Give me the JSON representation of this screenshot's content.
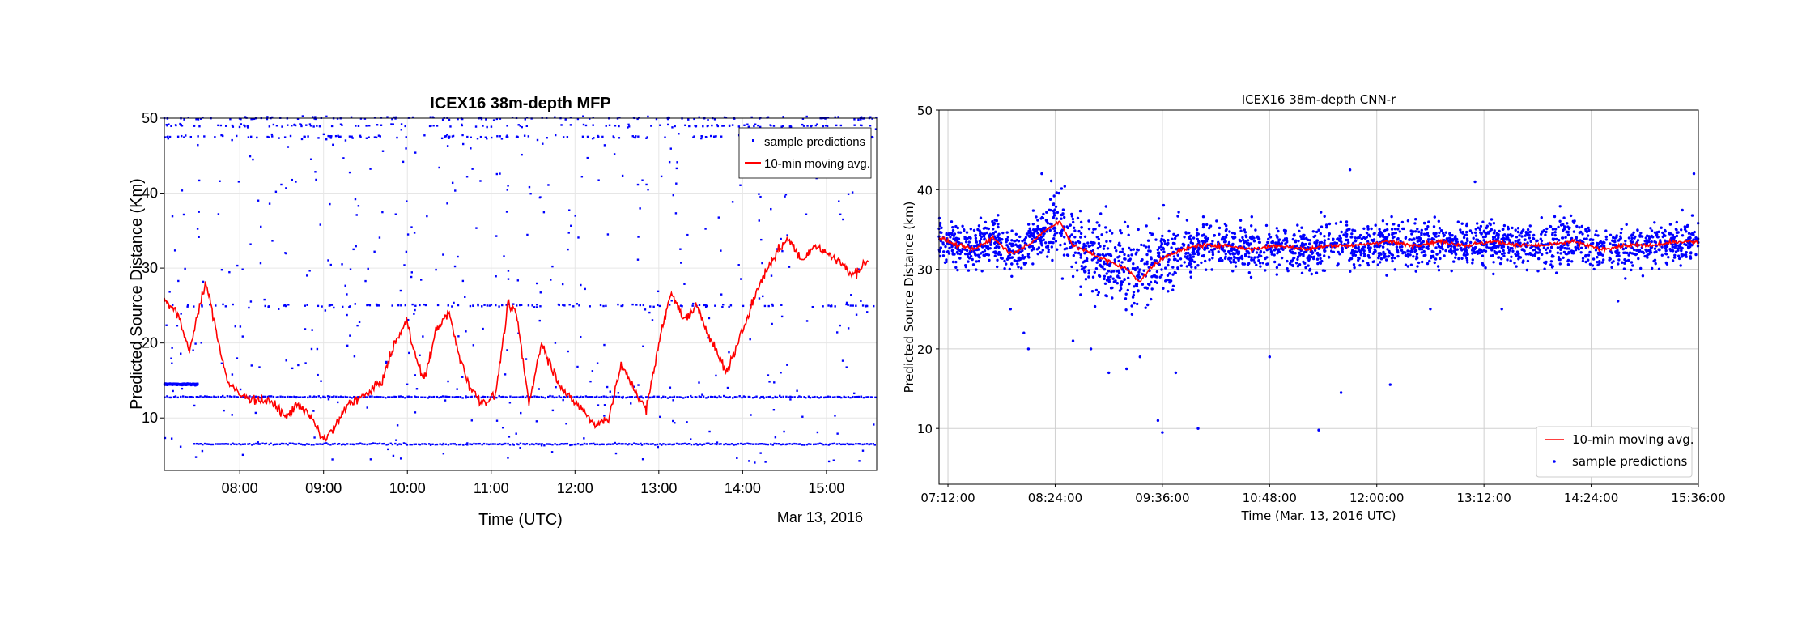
{
  "chart_data": [
    {
      "type": "scatter",
      "title": "ICEX16 38m-depth MFP",
      "xlabel": "Time (UTC)",
      "ylabel": "Predicted Source Distance (Km)",
      "date_note": "Mar 13, 2016",
      "x_range_hours": [
        7.1,
        15.6
      ],
      "ylim": [
        3,
        50
      ],
      "xticks": [
        {
          "t": 8,
          "label": "08:00"
        },
        {
          "t": 9,
          "label": "09:00"
        },
        {
          "t": 10,
          "label": "10:00"
        },
        {
          "t": 11,
          "label": "11:00"
        },
        {
          "t": 12,
          "label": "12:00"
        },
        {
          "t": 13,
          "label": "13:00"
        },
        {
          "t": 14,
          "label": "14:00"
        },
        {
          "t": 15,
          "label": "15:00"
        }
      ],
      "yticks": [
        {
          "v": 10,
          "label": "10"
        },
        {
          "v": 20,
          "label": "20"
        },
        {
          "v": 30,
          "label": "30"
        },
        {
          "v": 40,
          "label": "40"
        },
        {
          "v": 50,
          "label": "50"
        }
      ],
      "grid": true,
      "legend_position": "top-right",
      "series": [
        {
          "name": "sample predictions",
          "kind": "points",
          "color": "#0000ff",
          "bands": [
            {
              "level": 6.5,
              "t_start": 7.45,
              "t_end": 15.6
            },
            {
              "level": 12.8,
              "t_start": 7.1,
              "t_end": 15.6
            },
            {
              "level": 14.5,
              "t_start": 7.1,
              "t_end": 7.5
            },
            {
              "level": 25,
              "t_start": 7.1,
              "t_end": 15.6,
              "sparse": true
            },
            {
              "level": 50,
              "t_start": 7.1,
              "t_end": 15.6,
              "sparse": true
            },
            {
              "level": 49,
              "t_start": 7.1,
              "t_end": 15.6,
              "sparse": true
            },
            {
              "level": 47.5,
              "t_start": 7.1,
              "t_end": 15.6,
              "sparse": true
            }
          ]
        },
        {
          "name": "10-min moving avg.",
          "kind": "line",
          "color": "#ff0000",
          "t": [
            7.1,
            7.25,
            7.4,
            7.5,
            7.6,
            7.75,
            7.85,
            8.0,
            8.2,
            8.4,
            8.55,
            8.7,
            8.85,
            9.0,
            9.15,
            9.3,
            9.5,
            9.7,
            9.85,
            10.0,
            10.1,
            10.2,
            10.35,
            10.5,
            10.6,
            10.75,
            10.9,
            11.05,
            11.2,
            11.3,
            11.45,
            11.6,
            11.75,
            11.9,
            12.1,
            12.25,
            12.4,
            12.55,
            12.7,
            12.85,
            13.0,
            13.15,
            13.3,
            13.45,
            13.6,
            13.8,
            13.95,
            14.1,
            14.25,
            14.4,
            14.55,
            14.7,
            14.85,
            15.0,
            15.15,
            15.3,
            15.5
          ],
          "y": [
            26,
            24,
            19,
            24,
            28,
            20,
            15,
            13,
            12.5,
            12,
            10,
            12,
            10,
            7,
            9,
            12,
            13,
            15,
            20,
            23,
            18,
            15,
            22,
            24,
            19,
            14,
            12,
            13,
            25,
            24,
            12,
            20,
            16,
            13,
            11,
            9,
            10,
            17,
            14,
            11,
            20,
            27,
            23,
            25,
            21,
            16,
            20,
            25,
            29,
            32,
            34,
            31,
            33,
            32,
            31,
            29,
            31
          ]
        }
      ]
    },
    {
      "type": "scatter",
      "title": "ICEX16 38m-depth CNN-r",
      "xlabel": "Time (Mar. 13, 2016 UTC)",
      "ylabel": "Predicted Source Distance (km)",
      "x_range_hours": [
        7.1,
        15.6
      ],
      "ylim": [
        3,
        50
      ],
      "xticks": [
        {
          "t": 7.2,
          "label": "07:12:00"
        },
        {
          "t": 8.4,
          "label": "08:24:00"
        },
        {
          "t": 9.6,
          "label": "09:36:00"
        },
        {
          "t": 10.8,
          "label": "10:48:00"
        },
        {
          "t": 12.0,
          "label": "12:00:00"
        },
        {
          "t": 13.2,
          "label": "13:12:00"
        },
        {
          "t": 14.4,
          "label": "14:24:00"
        },
        {
          "t": 15.6,
          "label": "15:36:00"
        }
      ],
      "yticks": [
        {
          "v": 10,
          "label": "10"
        },
        {
          "v": 20,
          "label": "20"
        },
        {
          "v": 30,
          "label": "30"
        },
        {
          "v": 40,
          "label": "40"
        },
        {
          "v": 50,
          "label": "50"
        }
      ],
      "grid": true,
      "legend_position": "bottom-right",
      "series": [
        {
          "name": "10-min moving avg.",
          "kind": "line",
          "color": "#ff0000",
          "t": [
            7.1,
            7.3,
            7.5,
            7.7,
            7.9,
            8.1,
            8.3,
            8.45,
            8.6,
            8.8,
            9.0,
            9.2,
            9.35,
            9.5,
            9.7,
            10.0,
            10.3,
            10.6,
            10.9,
            11.2,
            11.5,
            11.8,
            12.1,
            12.4,
            12.7,
            13.0,
            13.3,
            13.6,
            13.9,
            14.2,
            14.5,
            14.8,
            15.1,
            15.4,
            15.6
          ],
          "y": [
            34,
            33,
            32.5,
            34,
            32,
            33,
            35,
            36,
            33,
            32,
            31,
            30,
            28.5,
            30.5,
            32,
            33,
            33,
            32.5,
            33,
            32.5,
            33,
            33,
            33.5,
            33,
            33.5,
            33,
            33.5,
            33,
            33,
            33.5,
            32.5,
            33,
            33,
            33.5,
            33.5
          ]
        },
        {
          "name": "sample predictions",
          "kind": "points",
          "color": "#0000ff",
          "center": 33,
          "spread": 3.5
        }
      ]
    }
  ]
}
